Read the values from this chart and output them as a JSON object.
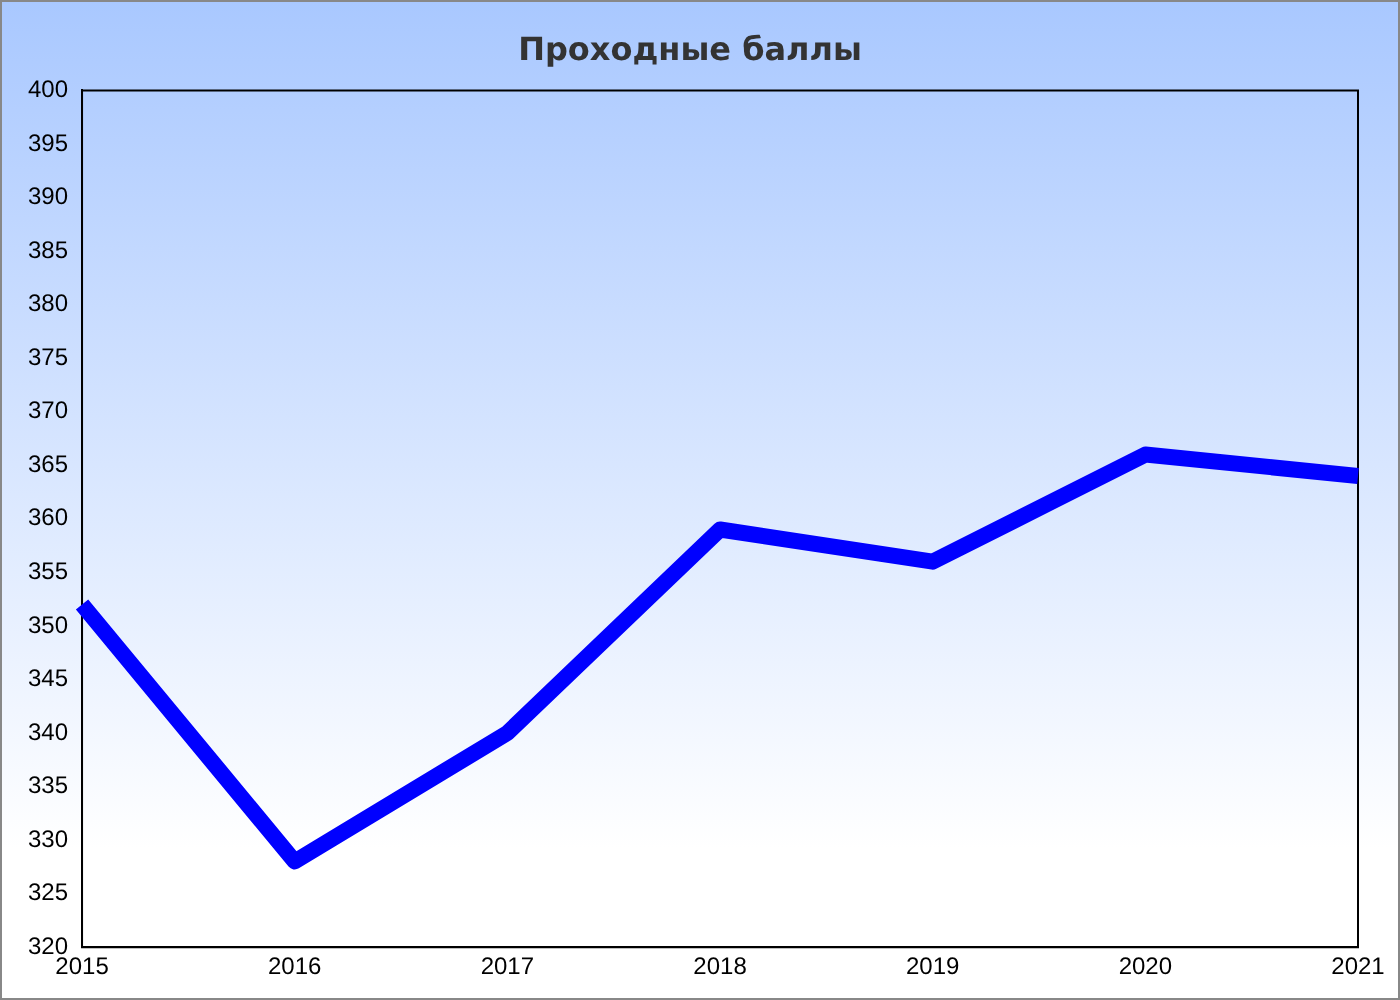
{
  "chart_data": {
    "type": "line",
    "title": "Проходные баллы",
    "categories": [
      "2015",
      "2016",
      "2017",
      "2018",
      "2019",
      "2020",
      "2021"
    ],
    "series": [
      {
        "color": "#0000ff",
        "values": [
          352,
          328,
          340,
          359,
          356,
          366,
          364
        ]
      }
    ],
    "ylim": [
      320,
      400
    ],
    "yticks": [
      320,
      325,
      330,
      335,
      340,
      345,
      350,
      355,
      360,
      365,
      370,
      375,
      380,
      385,
      390,
      395,
      400
    ],
    "grid": false,
    "legend": false,
    "marker": "none",
    "line_style": "solid"
  }
}
